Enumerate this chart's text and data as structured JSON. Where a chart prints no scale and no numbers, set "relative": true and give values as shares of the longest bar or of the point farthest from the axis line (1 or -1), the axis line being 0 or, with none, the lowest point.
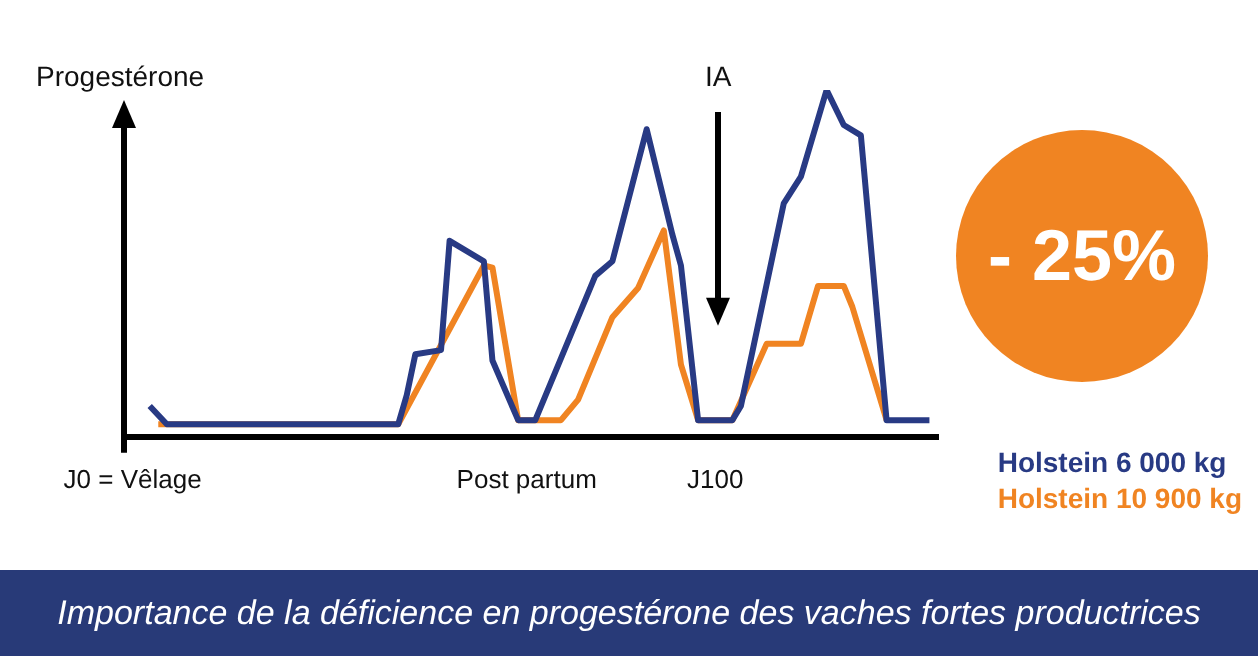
{
  "chart_data": {
    "type": "line",
    "relative": true,
    "ylabel": "Progestérone",
    "categories": [
      null,
      "J0 = Vêlage",
      null,
      null,
      null,
      null,
      null,
      null,
      null,
      null,
      null,
      null,
      null,
      null,
      null,
      null,
      null,
      null,
      null,
      null,
      null,
      null,
      null,
      null,
      null,
      null,
      null,
      null,
      null,
      null,
      null,
      null,
      null,
      null,
      null,
      null,
      null,
      null,
      null,
      null,
      null,
      null,
      null,
      null,
      null,
      null,
      null,
      "Post partum",
      null,
      null,
      null,
      null,
      null,
      null,
      null,
      null,
      null,
      null,
      null,
      null,
      null,
      null,
      null,
      null,
      null,
      null,
      null,
      null,
      null,
      "J100",
      null,
      null,
      null,
      null,
      null,
      null,
      null,
      null,
      null,
      null,
      null,
      null,
      null,
      null,
      null,
      null,
      null,
      null,
      null,
      null,
      null,
      null,
      null,
      null,
      null,
      null
    ],
    "grid": false,
    "legend": "bottom right",
    "marker": "none",
    "line_style": "solid",
    "series": [
      {
        "name": "Holstein 6 000 kg",
        "color": "#283a84",
        "values": [
          null,
          null,
          null,
          0.089,
          null,
          0.036,
          null,
          null,
          null,
          null,
          null,
          null,
          null,
          null,
          null,
          null,
          null,
          null,
          null,
          null,
          null,
          null,
          null,
          null,
          null,
          null,
          null,
          null,
          null,
          null,
          null,
          null,
          0.036,
          0.12,
          0.238,
          null,
          null,
          0.25,
          0.565,
          null,
          null,
          null,
          0.506,
          0.22,
          null,
          null,
          0.048,
          null,
          0.048,
          null,
          null,
          null,
          null,
          null,
          null,
          0.464,
          null,
          0.506,
          null,
          null,
          null,
          0.887,
          null,
          null,
          0.583,
          0.494,
          null,
          0.048,
          null,
          null,
          null,
          0.048,
          0.089,
          null,
          null,
          null,
          null,
          0.673,
          null,
          0.75,
          null,
          null,
          1,
          null,
          0.899,
          null,
          0.869,
          null,
          null,
          0.048,
          null,
          null,
          null,
          null,
          0.048,
          null
        ]
      },
      {
        "name": "Holstein 10 900 kg",
        "color": "#f08422",
        "values": [
          null,
          null,
          null,
          null,
          0.036,
          null,
          null,
          null,
          null,
          null,
          null,
          null,
          null,
          null,
          null,
          null,
          null,
          null,
          null,
          null,
          null,
          null,
          null,
          null,
          null,
          null,
          null,
          null,
          null,
          null,
          null,
          null,
          0.036,
          null,
          null,
          null,
          null,
          null,
          null,
          null,
          null,
          null,
          0.494,
          0.488,
          null,
          null,
          0.048,
          null,
          null,
          null,
          null,
          0.048,
          null,
          0.107,
          null,
          null,
          null,
          0.345,
          null,
          null,
          0.429,
          null,
          null,
          0.595,
          null,
          0.208,
          null,
          0.048,
          null,
          null,
          null,
          0.048,
          null,
          null,
          null,
          0.268,
          null,
          null,
          null,
          0.268,
          null,
          0.435,
          null,
          null,
          0.435,
          0.375,
          null,
          null,
          null,
          0.048,
          null,
          null,
          null,
          null,
          null,
          null
        ]
      }
    ],
    "annotations": [
      "IA",
      "- 25%",
      "Importance de la déficience en progestérone des vaches fortes productrices"
    ]
  }
}
